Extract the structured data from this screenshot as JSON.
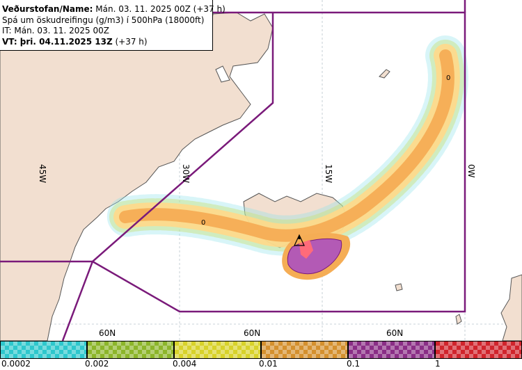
{
  "header": {
    "org_label": "Veðurstofan/Name:",
    "org_value": "Mán. 03. 11. 2025 00Z (+37 h)",
    "product": "Spá um öskudreifingu (g/m3) í 500hPa (18000ft)",
    "issue_time": "IT: Mán. 03. 11. 2025 00Z",
    "valid_label": "VT: þri. 04.11.2025 13Z",
    "valid_suffix": "(+37 h)"
  },
  "map": {
    "meridian_labels": [
      "45W",
      "30W",
      "15W",
      "0W"
    ],
    "parallel_labels": [
      "60N",
      "60N",
      "60N"
    ],
    "contour_labels": [
      "0",
      "0"
    ],
    "colors": {
      "ocean": "#ffffff",
      "land": "#f2dfd0",
      "coast": "#555555",
      "boundary": "#7a1a7a",
      "ash_light": "#ffd98a",
      "ash_medium": "#f5ad55",
      "ash_high": "#b35ab5",
      "ash_peak": "#ff6b7a",
      "trace_cyan": "#8fe3ea",
      "trace_green": "#c8e27a"
    }
  },
  "scale": {
    "labels": [
      "0.0002",
      "0.002",
      "0.004",
      "0.01",
      "0.1",
      "1"
    ],
    "colors": [
      "#2ec7cc",
      "#8cb52a",
      "#d8d22a",
      "#d4902e",
      "#8a2e86",
      "#d0242c"
    ]
  }
}
